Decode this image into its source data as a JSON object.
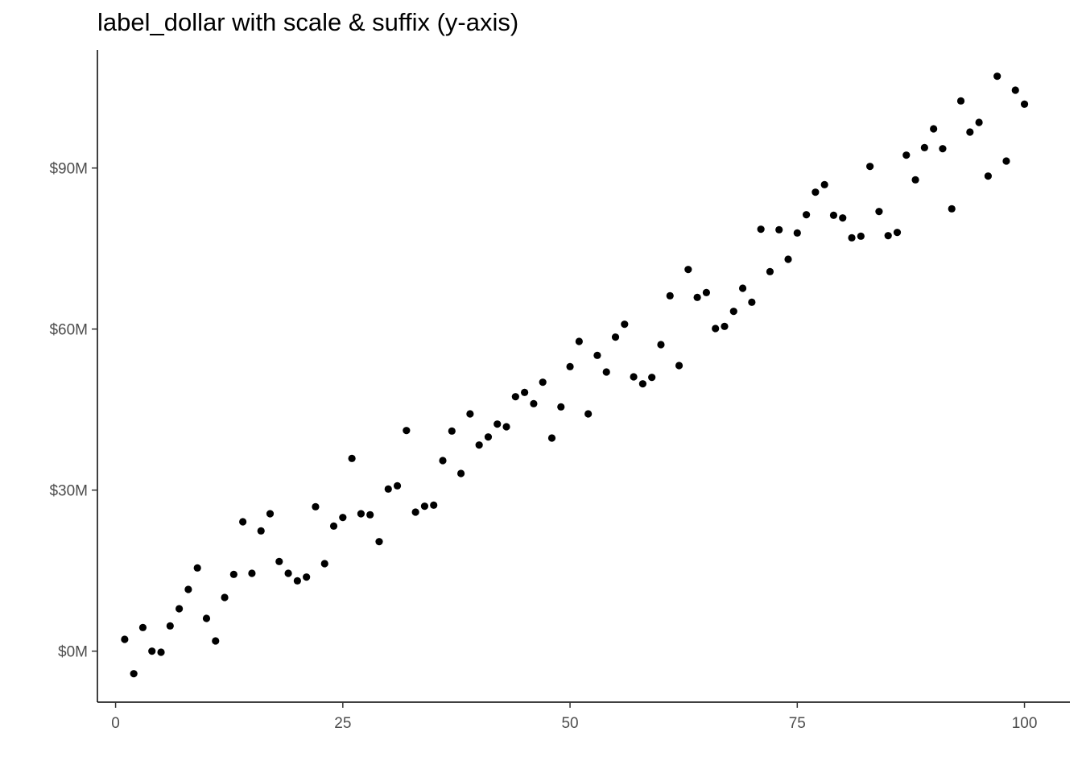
{
  "chart_data": {
    "type": "scatter",
    "title": "label_dollar with scale & suffix (y-axis)",
    "xlabel": "",
    "ylabel": "",
    "xlim": [
      -2,
      105
    ],
    "ylim": [
      -9.5,
      112
    ],
    "grid": false,
    "point_color": "#000000",
    "x_ticks": [
      0,
      25,
      50,
      75,
      100
    ],
    "x_tick_labels": [
      "0",
      "25",
      "50",
      "75",
      "100"
    ],
    "y_ticks": [
      0,
      30,
      60,
      90
    ],
    "y_tick_labels": [
      "$0M",
      "$30M",
      "$60M",
      "$90M"
    ],
    "x": [
      1,
      2,
      3,
      4,
      5,
      6,
      7,
      8,
      9,
      10,
      11,
      12,
      13,
      14,
      15,
      16,
      17,
      18,
      19,
      20,
      21,
      22,
      23,
      24,
      25,
      26,
      27,
      28,
      29,
      30,
      31,
      32,
      33,
      34,
      35,
      36,
      37,
      38,
      39,
      40,
      41,
      42,
      43,
      44,
      45,
      46,
      47,
      48,
      49,
      50,
      51,
      52,
      53,
      54,
      55,
      56,
      57,
      58,
      59,
      60,
      61,
      62,
      63,
      64,
      65,
      66,
      67,
      68,
      69,
      70,
      71,
      72,
      73,
      74,
      75,
      76,
      77,
      78,
      79,
      80,
      81,
      82,
      83,
      84,
      85,
      86,
      87,
      88,
      89,
      90,
      91,
      92,
      93,
      94,
      95,
      96,
      97,
      98,
      99,
      100
    ],
    "y": [
      2.2,
      -4.2,
      4.4,
      0.0,
      -0.2,
      4.7,
      7.9,
      11.5,
      15.5,
      6.1,
      1.9,
      10.0,
      14.3,
      24.1,
      14.5,
      22.4,
      25.6,
      16.7,
      14.5,
      13.1,
      13.8,
      26.9,
      16.3,
      23.3,
      24.9,
      35.9,
      25.6,
      25.4,
      20.4,
      30.2,
      30.8,
      41.1,
      25.9,
      27.0,
      27.2,
      35.5,
      41.0,
      33.1,
      44.2,
      38.4,
      39.9,
      42.3,
      41.8,
      47.4,
      48.2,
      46.1,
      50.1,
      39.7,
      45.5,
      53.0,
      57.7,
      44.2,
      55.1,
      52.0,
      58.5,
      60.9,
      51.1,
      49.8,
      51.0,
      57.1,
      66.2,
      53.2,
      71.1,
      65.9,
      66.8,
      60.1,
      60.5,
      63.3,
      67.6,
      65.0,
      78.6,
      70.7,
      78.5,
      73.0,
      77.9,
      81.3,
      85.5,
      86.9,
      81.2,
      80.7,
      77.0,
      77.3,
      90.3,
      81.9,
      77.4,
      78.0,
      92.4,
      87.8,
      93.8,
      97.3,
      93.6,
      82.4,
      102.5,
      96.7,
      98.5,
      88.5,
      107.1,
      91.3,
      104.5,
      101.9
    ]
  }
}
